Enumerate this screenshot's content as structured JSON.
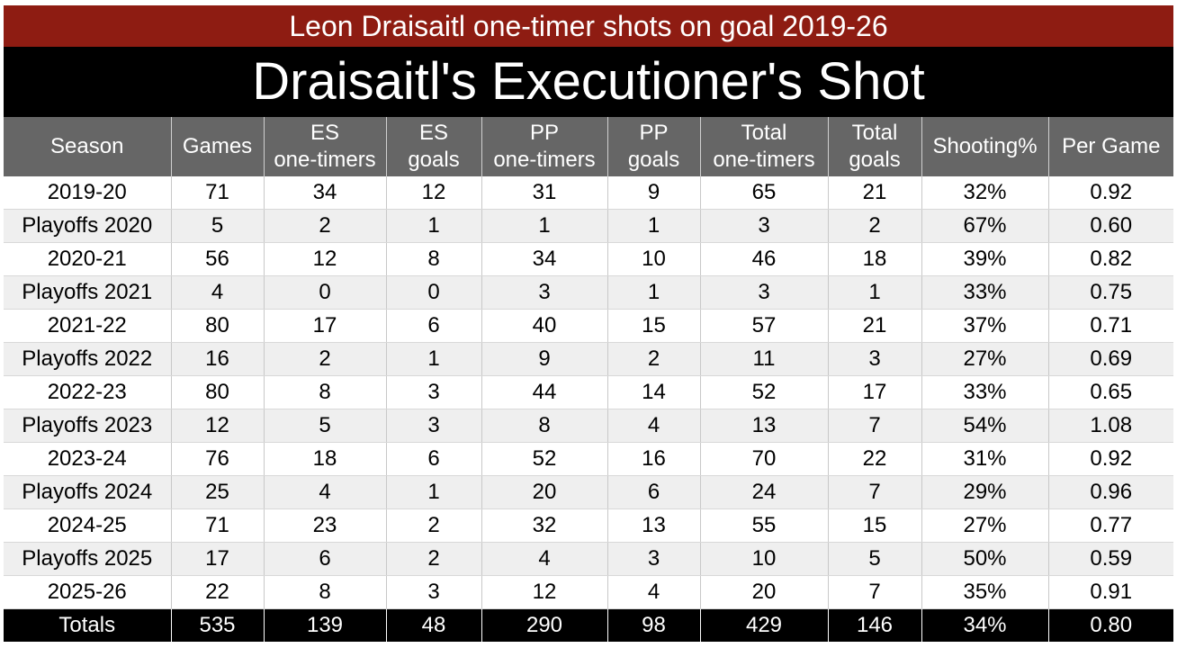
{
  "banner": "Leon Draisaitl one-timer shots on goal 2019-26",
  "title": "Draisaitl's Executioner's Shot",
  "columns": [
    [
      "Season"
    ],
    [
      "Games"
    ],
    [
      "ES",
      "one-timers"
    ],
    [
      "ES",
      "goals"
    ],
    [
      "PP",
      "one-timers"
    ],
    [
      "PP",
      "goals"
    ],
    [
      "Total",
      "one-timers"
    ],
    [
      "Total",
      "goals"
    ],
    [
      "Shooting%"
    ],
    [
      "Per Game"
    ]
  ],
  "rows": [
    [
      "2019-20",
      "71",
      "34",
      "12",
      "31",
      "9",
      "65",
      "21",
      "32%",
      "0.92"
    ],
    [
      "Playoffs 2020",
      "5",
      "2",
      "1",
      "1",
      "1",
      "3",
      "2",
      "67%",
      "0.60"
    ],
    [
      "2020-21",
      "56",
      "12",
      "8",
      "34",
      "10",
      "46",
      "18",
      "39%",
      "0.82"
    ],
    [
      "Playoffs 2021",
      "4",
      "0",
      "0",
      "3",
      "1",
      "3",
      "1",
      "33%",
      "0.75"
    ],
    [
      "2021-22",
      "80",
      "17",
      "6",
      "40",
      "15",
      "57",
      "21",
      "37%",
      "0.71"
    ],
    [
      "Playoffs 2022",
      "16",
      "2",
      "1",
      "9",
      "2",
      "11",
      "3",
      "27%",
      "0.69"
    ],
    [
      "2022-23",
      "80",
      "8",
      "3",
      "44",
      "14",
      "52",
      "17",
      "33%",
      "0.65"
    ],
    [
      "Playoffs 2023",
      "12",
      "5",
      "3",
      "8",
      "4",
      "13",
      "7",
      "54%",
      "1.08"
    ],
    [
      "2023-24",
      "76",
      "18",
      "6",
      "52",
      "16",
      "70",
      "22",
      "31%",
      "0.92"
    ],
    [
      "Playoffs 2024",
      "25",
      "4",
      "1",
      "20",
      "6",
      "24",
      "7",
      "29%",
      "0.96"
    ],
    [
      "2024-25",
      "71",
      "23",
      "2",
      "32",
      "13",
      "55",
      "15",
      "27%",
      "0.77"
    ],
    [
      "Playoffs 2025",
      "17",
      "6",
      "2",
      "4",
      "3",
      "10",
      "5",
      "50%",
      "0.59"
    ],
    [
      "2025-26",
      "22",
      "8",
      "3",
      "12",
      "4",
      "20",
      "7",
      "35%",
      "0.91"
    ]
  ],
  "totals": [
    "Totals",
    "535",
    "139",
    "48",
    "290",
    "98",
    "429",
    "146",
    "34%",
    "0.80"
  ],
  "colors": {
    "banner_bg": "#8e1c12",
    "title_bg": "#000000",
    "header_bg": "#666666",
    "stripe_bg": "#efefef",
    "totals_bg": "#000000"
  }
}
